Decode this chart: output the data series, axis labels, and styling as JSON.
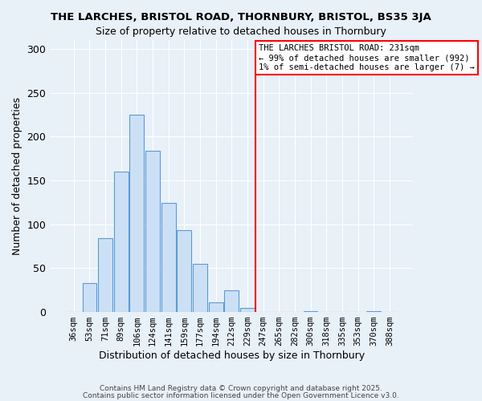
{
  "title1": "THE LARCHES, BRISTOL ROAD, THORNBURY, BRISTOL, BS35 3JA",
  "title2": "Size of property relative to detached houses in Thornbury",
  "xlabel": "Distribution of detached houses by size in Thornbury",
  "ylabel": "Number of detached properties",
  "bar_labels": [
    "36sqm",
    "53sqm",
    "71sqm",
    "89sqm",
    "106sqm",
    "124sqm",
    "141sqm",
    "159sqm",
    "177sqm",
    "194sqm",
    "212sqm",
    "229sqm",
    "247sqm",
    "265sqm",
    "282sqm",
    "300sqm",
    "318sqm",
    "335sqm",
    "353sqm",
    "370sqm",
    "388sqm"
  ],
  "bar_heights": [
    0,
    33,
    84,
    160,
    225,
    184,
    124,
    93,
    55,
    11,
    25,
    5,
    0,
    0,
    0,
    1,
    0,
    0,
    0,
    1,
    0
  ],
  "bar_color": "#cce0f5",
  "bar_edge_color": "#5b9bd5",
  "vline_color": "red",
  "annotation_text": "THE LARCHES BRISTOL ROAD: 231sqm\n← 99% of detached houses are smaller (992)\n1% of semi-detached houses are larger (7) →",
  "annotation_box_color": "#ffffff",
  "annotation_box_edge": "red",
  "ylim": [
    0,
    310
  ],
  "yticks": [
    0,
    50,
    100,
    150,
    200,
    250,
    300
  ],
  "footer1": "Contains HM Land Registry data © Crown copyright and database right 2025.",
  "footer2": "Contains public sector information licensed under the Open Government Licence v3.0.",
  "bg_color": "#e8f0f8",
  "plot_bg_color": "#e8f0f8"
}
